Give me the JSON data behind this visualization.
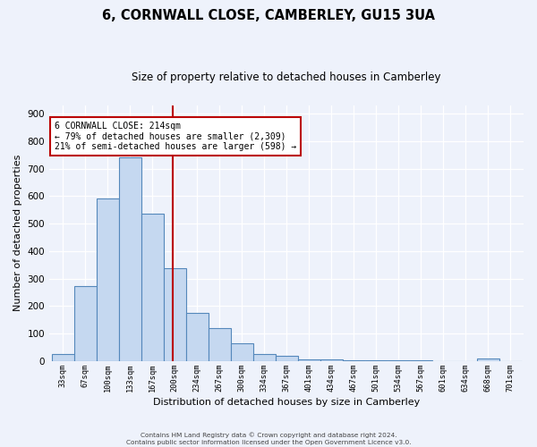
{
  "title": "6, CORNWALL CLOSE, CAMBERLEY, GU15 3UA",
  "subtitle": "Size of property relative to detached houses in Camberley",
  "xlabel": "Distribution of detached houses by size in Camberley",
  "ylabel": "Number of detached properties",
  "bin_labels": [
    "33sqm",
    "67sqm",
    "100sqm",
    "133sqm",
    "167sqm",
    "200sqm",
    "234sqm",
    "267sqm",
    "300sqm",
    "334sqm",
    "367sqm",
    "401sqm",
    "434sqm",
    "467sqm",
    "501sqm",
    "534sqm",
    "567sqm",
    "601sqm",
    "634sqm",
    "668sqm",
    "701sqm"
  ],
  "bar_heights": [
    25,
    272,
    592,
    742,
    535,
    338,
    175,
    120,
    65,
    25,
    18,
    5,
    5,
    2,
    2,
    1,
    1,
    0,
    0,
    8,
    0
  ],
  "bar_color": "#c5d8f0",
  "bar_edge_color": "#5588bb",
  "ylim": [
    0,
    930
  ],
  "yticks": [
    0,
    100,
    200,
    300,
    400,
    500,
    600,
    700,
    800,
    900
  ],
  "vline_color": "#bb0000",
  "annotation_title": "6 CORNWALL CLOSE: 214sqm",
  "annotation_line1": "← 79% of detached houses are smaller (2,309)",
  "annotation_line2": "21% of semi-detached houses are larger (598) →",
  "annotation_box_color": "#bb0000",
  "footer_line1": "Contains HM Land Registry data © Crown copyright and database right 2024.",
  "footer_line2": "Contains public sector information licensed under the Open Government Licence v3.0.",
  "background_color": "#eef2fb",
  "grid_color": "#ffffff"
}
